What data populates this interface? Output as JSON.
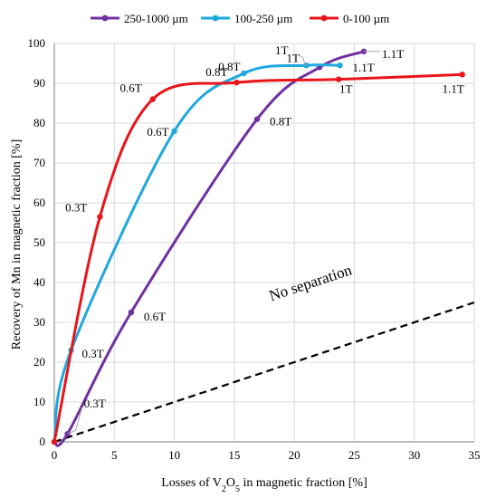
{
  "chart_data": {
    "type": "line",
    "xlabel_parts": [
      "Losses of V",
      "2",
      "O",
      "5",
      " in magnetic fraction [%]"
    ],
    "ylabel": "Recovery of  Mn in magnetic fraction [%]",
    "xlim": [
      0,
      35
    ],
    "ylim": [
      0,
      100
    ],
    "xticks": [
      0,
      5,
      10,
      15,
      20,
      25,
      30,
      35
    ],
    "yticks": [
      0,
      10,
      20,
      30,
      40,
      50,
      60,
      70,
      80,
      90,
      100
    ],
    "legend_position": "top",
    "series": [
      {
        "name": "250-1000 µm",
        "color": "#7030a0",
        "points": [
          [
            0,
            0
          ],
          [
            1.1,
            2
          ],
          [
            6.4,
            32.5
          ],
          [
            16.9,
            81
          ],
          [
            22.1,
            94
          ],
          [
            25.8,
            98
          ]
        ],
        "point_labels": [
          "",
          "0.3T",
          "0.6T",
          "0.8T",
          "1T",
          "1.1T"
        ]
      },
      {
        "name": "100-250 µm",
        "color": "#1fa8de",
        "points": [
          [
            0,
            0
          ],
          [
            1.4,
            23
          ],
          [
            10,
            78
          ],
          [
            15.8,
            92.5
          ],
          [
            21,
            94.5
          ],
          [
            23.8,
            94.5
          ]
        ],
        "point_labels": [
          "",
          "0.3T",
          "0.6T",
          "0.8T",
          "1T",
          "1.1T"
        ]
      },
      {
        "name": "0-100 µm",
        "color": "#e8151a",
        "points": [
          [
            0,
            0
          ],
          [
            3.8,
            56.5
          ],
          [
            8.2,
            86
          ],
          [
            15.2,
            90.2
          ],
          [
            23.7,
            91
          ],
          [
            34,
            92.2
          ]
        ],
        "point_labels": [
          "",
          "0.3T",
          "0.6T",
          "0.8T",
          "1T",
          "1.1T"
        ]
      }
    ],
    "reference_line": {
      "label": "No separation",
      "points": [
        [
          0,
          0
        ],
        [
          35,
          35
        ]
      ]
    }
  }
}
